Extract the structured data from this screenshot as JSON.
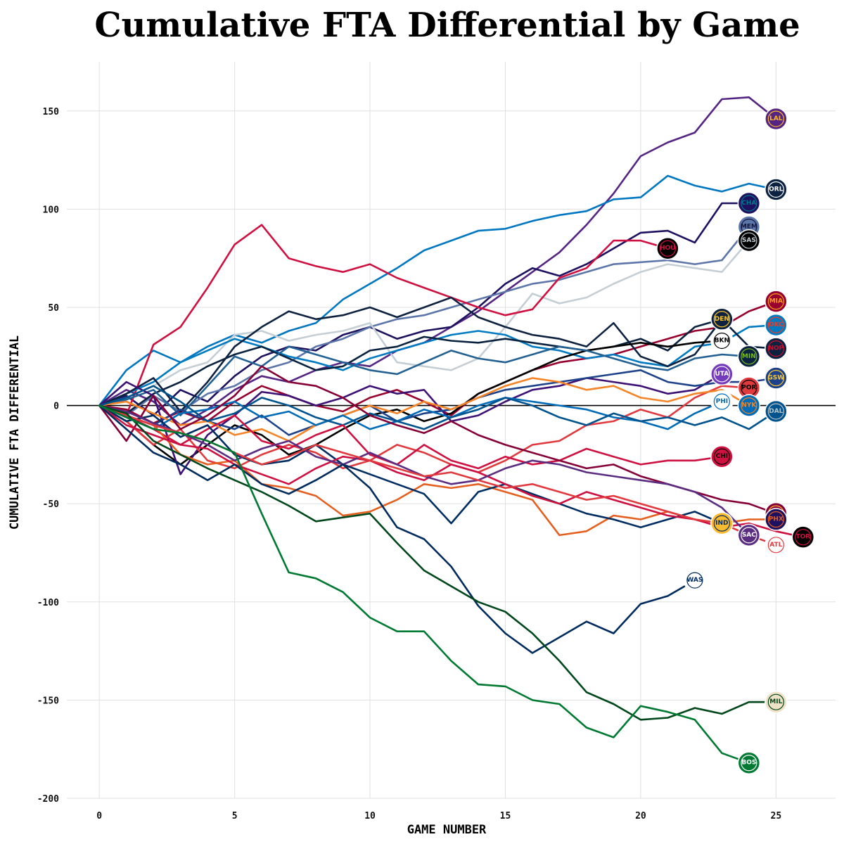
{
  "chart_data": {
    "type": "line",
    "title": "Cumulative FTA Differential by Game",
    "xlabel": "GAME NUMBER",
    "ylabel": "CUMULATIVE FTA DIFFERENTIAL",
    "xlim": [
      -1.2,
      27.2
    ],
    "ylim": [
      -200,
      175
    ],
    "x_ticks": [
      0,
      5,
      10,
      15,
      20,
      25
    ],
    "y_ticks": [
      -200,
      -150,
      -100,
      -50,
      0,
      50,
      100,
      150
    ],
    "grid": true,
    "legend": "team logos at series end",
    "series": [
      {
        "name": "LAL",
        "color": "#552583",
        "logo_bg": "#552583",
        "logo_fg": "#FDB927",
        "values": [
          0,
          8,
          2,
          -10,
          -2,
          8,
          15,
          12,
          18,
          22,
          20,
          28,
          32,
          40,
          48,
          58,
          68,
          78,
          92,
          108,
          127,
          134,
          139,
          156,
          157,
          146
        ]
      },
      {
        "name": "ORL",
        "color": "#0077C0",
        "logo_bg": "#0B2240",
        "logo_fg": "#ffffff",
        "values": [
          0,
          18,
          28,
          22,
          30,
          36,
          32,
          38,
          42,
          54,
          62,
          70,
          79,
          84,
          89,
          90,
          94,
          97,
          99,
          105,
          106,
          117,
          112,
          109,
          113,
          110
        ]
      },
      {
        "name": "CHA",
        "color": "#1D1160",
        "logo_bg": "#1D1160",
        "logo_fg": "#00788C",
        "values": [
          0,
          5,
          -5,
          8,
          2,
          15,
          25,
          30,
          28,
          36,
          40,
          34,
          38,
          40,
          50,
          62,
          70,
          66,
          72,
          80,
          88,
          89,
          83,
          103,
          103
        ]
      },
      {
        "name": "MEM",
        "color": "#5D76A9",
        "logo_bg": "#5D76A9",
        "logo_fg": "#12173F",
        "values": [
          0,
          -5,
          5,
          -3,
          6,
          10,
          18,
          22,
          30,
          34,
          40,
          44,
          46,
          50,
          54,
          58,
          62,
          64,
          68,
          72,
          73,
          74,
          72,
          74,
          91
        ]
      },
      {
        "name": "SAS",
        "color": "#C4CED4",
        "logo_bg": "#000000",
        "logo_fg": "#C4CED4",
        "values": [
          0,
          4,
          10,
          18,
          22,
          36,
          38,
          33,
          36,
          38,
          42,
          22,
          20,
          18,
          24,
          40,
          57,
          52,
          55,
          62,
          68,
          72,
          70,
          68,
          84
        ]
      },
      {
        "name": "HOU",
        "color": "#CE1141",
        "logo_bg": "#000000",
        "logo_fg": "#CE1141",
        "values": [
          0,
          -5,
          31,
          40,
          60,
          82,
          92,
          75,
          71,
          68,
          72,
          65,
          60,
          55,
          50,
          46,
          49,
          65,
          70,
          84,
          84,
          80
        ]
      },
      {
        "name": "MIA",
        "color": "#98002E",
        "logo_bg": "#98002E",
        "logo_fg": "#F9A01B",
        "values": [
          0,
          -2,
          -9,
          -3,
          -8,
          2,
          10,
          5,
          0,
          -3,
          4,
          8,
          2,
          -5,
          6,
          12,
          18,
          22,
          24,
          26,
          30,
          34,
          38,
          40,
          48,
          53
        ]
      },
      {
        "name": "OKC",
        "color": "#007AC1",
        "logo_bg": "#007AC1",
        "logo_fg": "#EF3B24",
        "values": [
          0,
          6,
          12,
          22,
          28,
          34,
          30,
          25,
          22,
          18,
          24,
          28,
          32,
          36,
          38,
          36,
          30,
          28,
          24,
          26,
          22,
          20,
          30,
          32,
          40,
          41
        ]
      },
      {
        "name": "NOP",
        "color": "#0C2340",
        "logo_bg": "#0C2340",
        "logo_fg": "#C8102E",
        "values": [
          0,
          -4,
          6,
          12,
          20,
          26,
          30,
          24,
          18,
          20,
          28,
          30,
          35,
          33,
          32,
          34,
          32,
          30,
          28,
          30,
          34,
          28,
          40,
          44,
          30,
          29
        ]
      },
      {
        "name": "DEN",
        "color": "#0E2240",
        "logo_bg": "#0E2240",
        "logo_fg": "#FEC524",
        "values": [
          0,
          6,
          14,
          -3,
          12,
          30,
          40,
          48,
          44,
          46,
          50,
          45,
          50,
          55,
          45,
          40,
          36,
          34,
          30,
          42,
          25,
          20,
          26,
          44
        ]
      },
      {
        "name": "BKN",
        "color": "#000000",
        "logo_bg": "#ffffff",
        "logo_fg": "#000000",
        "values": [
          0,
          -8,
          -20,
          -30,
          -20,
          -10,
          -15,
          -25,
          -20,
          -12,
          -5,
          -2,
          -8,
          -4,
          6,
          12,
          18,
          24,
          28,
          30,
          32,
          30,
          32,
          33
        ]
      },
      {
        "name": "MIN",
        "color": "#236192",
        "logo_bg": "#0C2340",
        "logo_fg": "#78BE20",
        "values": [
          0,
          3,
          8,
          -5,
          10,
          25,
          20,
          30,
          26,
          22,
          18,
          16,
          22,
          28,
          24,
          22,
          26,
          30,
          28,
          24,
          20,
          18,
          24,
          26,
          25
        ]
      },
      {
        "name": "UTA",
        "color": "#3E1175",
        "logo_bg": "#753BBD",
        "logo_fg": "#ffffff",
        "values": [
          0,
          12,
          5,
          -35,
          -15,
          -5,
          7,
          5,
          0,
          4,
          10,
          6,
          8,
          -8,
          -5,
          2,
          8,
          10,
          14,
          12,
          10,
          6,
          8,
          16
        ]
      },
      {
        "name": "GSW",
        "color": "#1D428A",
        "logo_bg": "#1D428A",
        "logo_fg": "#FFC72C",
        "values": [
          0,
          -5,
          -10,
          -2,
          -8,
          -12,
          -5,
          -15,
          -10,
          -5,
          0,
          -8,
          -4,
          -2,
          4,
          8,
          10,
          12,
          14,
          16,
          18,
          12,
          10,
          12,
          12,
          14
        ]
      },
      {
        "name": "POR",
        "color": "#E03A3E",
        "logo_bg": "#E03A3E",
        "logo_fg": "#000000",
        "values": [
          0,
          -8,
          -20,
          -12,
          -28,
          -32,
          -25,
          -20,
          -24,
          -32,
          -28,
          -20,
          -24,
          -30,
          -34,
          -28,
          -20,
          -18,
          -10,
          -8,
          -2,
          -6,
          4,
          10,
          9
        ]
      },
      {
        "name": "NYK",
        "color": "#F58426",
        "logo_bg": "#006BB6",
        "logo_fg": "#F58426",
        "values": [
          0,
          2,
          -4,
          -10,
          -8,
          -15,
          -12,
          -18,
          -10,
          -5,
          0,
          -4,
          2,
          -2,
          4,
          10,
          14,
          12,
          8,
          10,
          4,
          2,
          6,
          8,
          0
        ]
      },
      {
        "name": "PHI",
        "color": "#006BB6",
        "logo_bg": "#ffffff",
        "logo_fg": "#006BB6",
        "values": [
          0,
          -6,
          -12,
          -4,
          -2,
          2,
          -6,
          -3,
          -10,
          -5,
          -12,
          -8,
          -2,
          -6,
          0,
          4,
          2,
          0,
          -2,
          -6,
          -8,
          -12,
          -4,
          2
        ]
      },
      {
        "name": "DAL",
        "color": "#00538C",
        "logo_bg": "#00538C",
        "logo_fg": "#B8C4CA",
        "values": [
          0,
          4,
          10,
          2,
          -8,
          -4,
          4,
          0,
          -6,
          -10,
          -4,
          -8,
          -12,
          -6,
          -2,
          4,
          0,
          -6,
          -10,
          -4,
          -8,
          -6,
          -10,
          -6,
          -12,
          -3
        ]
      },
      {
        "name": "CHI",
        "color": "#CE1141",
        "logo_bg": "#CE1141",
        "logo_fg": "#000000",
        "values": [
          0,
          -5,
          -12,
          -20,
          -12,
          -5,
          -18,
          -22,
          -15,
          -10,
          -25,
          -30,
          -20,
          -28,
          -32,
          -26,
          -30,
          -28,
          -22,
          -26,
          -30,
          -28,
          -28,
          -26
        ]
      },
      {
        "name": "CLE",
        "color": "#860038",
        "logo_bg": "#860038",
        "logo_fg": "#FDBB30",
        "values": [
          0,
          -18,
          5,
          -12,
          -5,
          5,
          20,
          12,
          10,
          4,
          -5,
          -10,
          -14,
          -8,
          -15,
          -20,
          -24,
          -28,
          -32,
          -30,
          -36,
          -40,
          -44,
          -48,
          -50,
          -55
        ]
      },
      {
        "name": "PHX",
        "color": "#E56020",
        "logo_bg": "#1D1160",
        "logo_fg": "#E56020",
        "values": [
          0,
          -5,
          -10,
          -25,
          -30,
          -28,
          -40,
          -42,
          -46,
          -56,
          -54,
          -48,
          -40,
          -42,
          -40,
          -44,
          -48,
          -66,
          -64,
          -56,
          -58,
          -54,
          -58,
          -60,
          -58,
          -58
        ]
      },
      {
        "name": "IND",
        "color": "#002D62",
        "logo_bg": "#FDBB30",
        "logo_fg": "#002D62",
        "values": [
          0,
          -8,
          -5,
          -16,
          -10,
          -25,
          -30,
          -28,
          -20,
          -30,
          -35,
          -40,
          -45,
          -60,
          -44,
          -40,
          -45,
          -50,
          -55,
          -58,
          -62,
          -58,
          -54,
          -60
        ]
      },
      {
        "name": "TOR",
        "color": "#CE1141",
        "logo_bg": "#000000",
        "logo_fg": "#CE1141",
        "values": [
          0,
          -10,
          -15,
          -20,
          -22,
          -30,
          -35,
          -40,
          -32,
          -26,
          -28,
          -34,
          -38,
          -30,
          -34,
          -40,
          -46,
          -50,
          -44,
          -48,
          -52,
          -56,
          -58,
          -62,
          -60,
          -64,
          -67
        ]
      },
      {
        "name": "SAC",
        "color": "#5A2D81",
        "logo_bg": "#5A2D81",
        "logo_fg": "#ffffff",
        "values": [
          0,
          -3,
          -9,
          -14,
          -20,
          -28,
          -22,
          -18,
          -26,
          -30,
          -24,
          -30,
          -36,
          -40,
          -38,
          -32,
          -28,
          -30,
          -34,
          -36,
          -38,
          -40,
          -44,
          -52,
          -66
        ]
      },
      {
        "name": "ATL",
        "color": "#E03A3E",
        "logo_bg": "#ffffff",
        "logo_fg": "#E03A3E",
        "values": [
          0,
          -5,
          -10,
          -14,
          -18,
          -24,
          -30,
          -26,
          -20,
          -24,
          -28,
          -32,
          -36,
          -34,
          -38,
          -42,
          -40,
          -44,
          -48,
          -46,
          -50,
          -54,
          -58,
          -60,
          -66,
          -71
        ]
      },
      {
        "name": "WAS",
        "color": "#002B5C",
        "logo_bg": "#ffffff",
        "logo_fg": "#002B5C",
        "values": [
          0,
          -12,
          -24,
          -30,
          -38,
          -30,
          -40,
          -45,
          -38,
          -30,
          -42,
          -62,
          -68,
          -82,
          -102,
          -116,
          -126,
          -118,
          -110,
          -116,
          -101,
          -97,
          -89
        ]
      },
      {
        "name": "MIL",
        "color": "#00471B",
        "logo_bg": "#EEE1C6",
        "logo_fg": "#00471B",
        "values": [
          0,
          -4,
          -18,
          -25,
          -32,
          -38,
          -44,
          -51,
          -59,
          -57,
          -55,
          -70,
          -84,
          -92,
          -100,
          -105,
          -116,
          -130,
          -146,
          -152,
          -160,
          -159,
          -154,
          -157,
          -151,
          -151
        ]
      },
      {
        "name": "BOS",
        "color": "#007A33",
        "logo_bg": "#007A33",
        "logo_fg": "#ffffff",
        "values": [
          0,
          -6,
          -12,
          -14,
          -18,
          -24,
          -55,
          -85,
          -88,
          -95,
          -108,
          -115,
          -115,
          -130,
          -142,
          -143,
          -150,
          -152,
          -164,
          -169,
          -153,
          -156,
          -160,
          -177,
          -182
        ]
      }
    ]
  }
}
